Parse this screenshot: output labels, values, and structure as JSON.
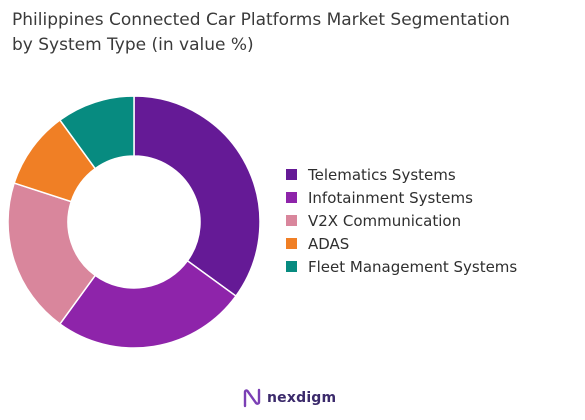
{
  "title_line1": "Philippines Connected Car Platforms Market Segmentation",
  "title_line2": "by System Type (in value %)",
  "brand": {
    "name": "nexdigm",
    "accent": "#7b3fb5"
  },
  "chart_data": {
    "type": "pie",
    "style": "donut",
    "title": "Philippines Connected Car Platforms Market Segmentation by System Type (in value %)",
    "legend_position": "right",
    "series": [
      {
        "name": "Telematics Systems",
        "value": 35,
        "color": "#651a96"
      },
      {
        "name": "Infotainment Systems",
        "value": 25,
        "color": "#8e24aa"
      },
      {
        "name": "V2X Communication",
        "value": 20,
        "color": "#d9869c"
      },
      {
        "name": "ADAS",
        "value": 10,
        "color": "#f07f25"
      },
      {
        "name": "Fleet Management Systems",
        "value": 10,
        "color": "#078b80"
      }
    ]
  }
}
